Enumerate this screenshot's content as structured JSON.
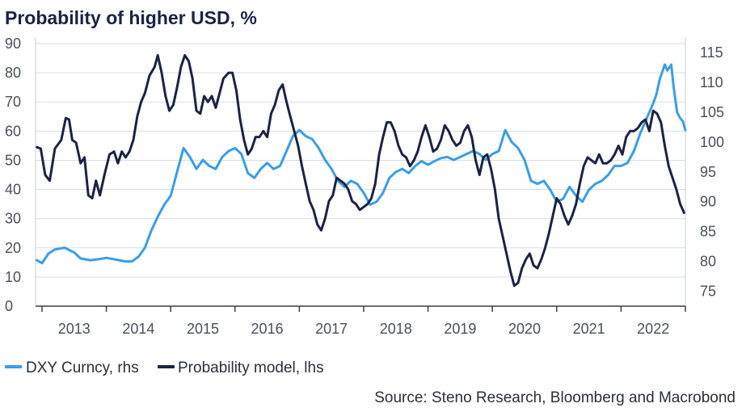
{
  "chart_data": {
    "type": "line",
    "title": "Probability of higher USD, %",
    "source": "Source: Steno Research, Bloomberg and Macrobond",
    "x_ticks": [
      "2013",
      "2014",
      "2015",
      "2016",
      "2017",
      "2018",
      "2019",
      "2020",
      "2021",
      "2022"
    ],
    "x_range": [
      2012.9,
      2023.0
    ],
    "y_left": {
      "ticks": [
        "0",
        "10",
        "20",
        "30",
        "40",
        "50",
        "60",
        "70",
        "80",
        "90"
      ],
      "range": [
        0,
        90
      ]
    },
    "y_right": {
      "ticks": [
        "75",
        "80",
        "85",
        "90",
        "95",
        "100",
        "105",
        "110",
        "115"
      ],
      "range": [
        72.5,
        116.5
      ]
    },
    "grid": true,
    "legend_position": "bottom-left",
    "series": [
      {
        "name": "DXY Curncy, rhs",
        "axis": "right",
        "color": "#3a9de8",
        "points": [
          [
            2012.92,
            80.2
          ],
          [
            2013.0,
            79.7
          ],
          [
            2013.1,
            81.3
          ],
          [
            2013.2,
            82.0
          ],
          [
            2013.35,
            82.3
          ],
          [
            2013.5,
            81.5
          ],
          [
            2013.6,
            80.5
          ],
          [
            2013.75,
            80.2
          ],
          [
            2013.9,
            80.4
          ],
          [
            2014.0,
            80.6
          ],
          [
            2014.15,
            80.3
          ],
          [
            2014.3,
            80.0
          ],
          [
            2014.4,
            80.0
          ],
          [
            2014.5,
            80.8
          ],
          [
            2014.6,
            82.3
          ],
          [
            2014.7,
            85.2
          ],
          [
            2014.8,
            87.5
          ],
          [
            2014.9,
            89.5
          ],
          [
            2015.0,
            91.0
          ],
          [
            2015.1,
            95.0
          ],
          [
            2015.2,
            99.0
          ],
          [
            2015.3,
            97.5
          ],
          [
            2015.4,
            95.5
          ],
          [
            2015.5,
            97.0
          ],
          [
            2015.6,
            96.0
          ],
          [
            2015.7,
            95.5
          ],
          [
            2015.8,
            97.5
          ],
          [
            2015.9,
            98.5
          ],
          [
            2016.0,
            99.0
          ],
          [
            2016.1,
            98.0
          ],
          [
            2016.2,
            94.8
          ],
          [
            2016.3,
            94.0
          ],
          [
            2016.4,
            95.5
          ],
          [
            2016.5,
            96.5
          ],
          [
            2016.6,
            95.5
          ],
          [
            2016.7,
            96.0
          ],
          [
            2016.8,
            98.5
          ],
          [
            2016.9,
            101.0
          ],
          [
            2017.0,
            102.0
          ],
          [
            2017.1,
            101.0
          ],
          [
            2017.2,
            100.5
          ],
          [
            2017.3,
            99.0
          ],
          [
            2017.4,
            97.0
          ],
          [
            2017.5,
            95.5
          ],
          [
            2017.6,
            93.5
          ],
          [
            2017.7,
            92.5
          ],
          [
            2017.8,
            93.5
          ],
          [
            2017.9,
            93.0
          ],
          [
            2018.0,
            91.5
          ],
          [
            2018.1,
            89.5
          ],
          [
            2018.2,
            90.0
          ],
          [
            2018.3,
            91.5
          ],
          [
            2018.4,
            94.0
          ],
          [
            2018.5,
            95.0
          ],
          [
            2018.6,
            95.5
          ],
          [
            2018.7,
            94.8
          ],
          [
            2018.8,
            96.0
          ],
          [
            2018.9,
            96.8
          ],
          [
            2019.0,
            96.2
          ],
          [
            2019.1,
            96.8
          ],
          [
            2019.2,
            97.3
          ],
          [
            2019.3,
            97.5
          ],
          [
            2019.4,
            97.0
          ],
          [
            2019.5,
            97.5
          ],
          [
            2019.6,
            98.0
          ],
          [
            2019.7,
            98.5
          ],
          [
            2019.8,
            98.0
          ],
          [
            2019.9,
            97.0
          ],
          [
            2020.0,
            98.0
          ],
          [
            2020.1,
            98.5
          ],
          [
            2020.2,
            102.0
          ],
          [
            2020.3,
            100.0
          ],
          [
            2020.4,
            99.0
          ],
          [
            2020.5,
            97.0
          ],
          [
            2020.6,
            93.5
          ],
          [
            2020.7,
            93.0
          ],
          [
            2020.8,
            93.5
          ],
          [
            2020.9,
            92.0
          ],
          [
            2021.0,
            90.0
          ],
          [
            2021.1,
            90.5
          ],
          [
            2021.2,
            92.5
          ],
          [
            2021.3,
            91.0
          ],
          [
            2021.4,
            90.0
          ],
          [
            2021.5,
            92.0
          ],
          [
            2021.6,
            93.0
          ],
          [
            2021.7,
            93.5
          ],
          [
            2021.8,
            94.5
          ],
          [
            2021.9,
            96.0
          ],
          [
            2022.0,
            96.0
          ],
          [
            2022.1,
            96.5
          ],
          [
            2022.2,
            98.5
          ],
          [
            2022.3,
            101.5
          ],
          [
            2022.4,
            104.0
          ],
          [
            2022.5,
            106.5
          ],
          [
            2022.55,
            108.0
          ],
          [
            2022.6,
            110.5
          ],
          [
            2022.68,
            113.0
          ],
          [
            2022.72,
            112.0
          ],
          [
            2022.78,
            113.0
          ],
          [
            2022.82,
            109.0
          ],
          [
            2022.87,
            105.0
          ],
          [
            2022.92,
            104.0
          ],
          [
            2022.96,
            103.5
          ],
          [
            2023.0,
            102.0
          ]
        ]
      },
      {
        "name": "Probability model, lhs",
        "axis": "left",
        "color": "#1b2342",
        "points": [
          [
            2012.92,
            54.5
          ],
          [
            2012.98,
            54.0
          ],
          [
            2013.05,
            45.0
          ],
          [
            2013.12,
            43.0
          ],
          [
            2013.2,
            54.0
          ],
          [
            2013.3,
            57.0
          ],
          [
            2013.37,
            64.5
          ],
          [
            2013.42,
            64.0
          ],
          [
            2013.47,
            57.0
          ],
          [
            2013.53,
            56.0
          ],
          [
            2013.6,
            49.0
          ],
          [
            2013.66,
            51.0
          ],
          [
            2013.72,
            38.0
          ],
          [
            2013.78,
            37.0
          ],
          [
            2013.84,
            43.0
          ],
          [
            2013.9,
            38.0
          ],
          [
            2013.97,
            45.0
          ],
          [
            2014.05,
            52.0
          ],
          [
            2014.12,
            53.0
          ],
          [
            2014.18,
            49.0
          ],
          [
            2014.24,
            53.0
          ],
          [
            2014.3,
            51.0
          ],
          [
            2014.36,
            53.0
          ],
          [
            2014.42,
            57.0
          ],
          [
            2014.48,
            65.0
          ],
          [
            2014.54,
            70.0
          ],
          [
            2014.6,
            73.0
          ],
          [
            2014.67,
            79.0
          ],
          [
            2014.75,
            82.0
          ],
          [
            2014.8,
            86.0
          ],
          [
            2014.86,
            80.0
          ],
          [
            2014.92,
            72.0
          ],
          [
            2014.98,
            67.0
          ],
          [
            2015.04,
            69.0
          ],
          [
            2015.1,
            75.0
          ],
          [
            2015.16,
            82.0
          ],
          [
            2015.22,
            86.0
          ],
          [
            2015.28,
            84.0
          ],
          [
            2015.34,
            78.0
          ],
          [
            2015.4,
            67.0
          ],
          [
            2015.46,
            66.0
          ],
          [
            2015.52,
            72.0
          ],
          [
            2015.58,
            70.0
          ],
          [
            2015.64,
            72.0
          ],
          [
            2015.7,
            68.0
          ],
          [
            2015.76,
            73.0
          ],
          [
            2015.82,
            78.0
          ],
          [
            2015.9,
            80.0
          ],
          [
            2015.96,
            80.0
          ],
          [
            2016.02,
            74.0
          ],
          [
            2016.08,
            64.0
          ],
          [
            2016.14,
            57.0
          ],
          [
            2016.2,
            52.0
          ],
          [
            2016.26,
            54.0
          ],
          [
            2016.32,
            58.0
          ],
          [
            2016.38,
            58.0
          ],
          [
            2016.44,
            60.0
          ],
          [
            2016.5,
            58.0
          ],
          [
            2016.56,
            66.0
          ],
          [
            2016.62,
            69.0
          ],
          [
            2016.68,
            74.0
          ],
          [
            2016.74,
            76.0
          ],
          [
            2016.8,
            70.0
          ],
          [
            2016.86,
            65.0
          ],
          [
            2016.92,
            60.0
          ],
          [
            2016.98,
            55.0
          ],
          [
            2017.04,
            48.0
          ],
          [
            2017.1,
            42.0
          ],
          [
            2017.16,
            36.0
          ],
          [
            2017.22,
            33.0
          ],
          [
            2017.28,
            28.0
          ],
          [
            2017.34,
            26.0
          ],
          [
            2017.4,
            30.0
          ],
          [
            2017.46,
            36.0
          ],
          [
            2017.52,
            38.0
          ],
          [
            2017.58,
            44.0
          ],
          [
            2017.64,
            43.0
          ],
          [
            2017.7,
            42.0
          ],
          [
            2017.76,
            40.0
          ],
          [
            2017.82,
            36.0
          ],
          [
            2017.88,
            35.0
          ],
          [
            2017.94,
            33.0
          ],
          [
            2018.0,
            34.0
          ],
          [
            2018.06,
            35.0
          ],
          [
            2018.12,
            37.0
          ],
          [
            2018.18,
            42.0
          ],
          [
            2018.24,
            52.0
          ],
          [
            2018.3,
            58.0
          ],
          [
            2018.36,
            63.0
          ],
          [
            2018.42,
            63.0
          ],
          [
            2018.48,
            60.0
          ],
          [
            2018.54,
            55.0
          ],
          [
            2018.6,
            52.0
          ],
          [
            2018.66,
            51.0
          ],
          [
            2018.72,
            48.0
          ],
          [
            2018.78,
            50.0
          ],
          [
            2018.84,
            53.0
          ],
          [
            2018.9,
            58.0
          ],
          [
            2018.96,
            62.0
          ],
          [
            2019.02,
            58.0
          ],
          [
            2019.08,
            53.0
          ],
          [
            2019.14,
            54.0
          ],
          [
            2019.2,
            57.0
          ],
          [
            2019.26,
            62.0
          ],
          [
            2019.32,
            60.0
          ],
          [
            2019.38,
            57.0
          ],
          [
            2019.44,
            55.0
          ],
          [
            2019.5,
            56.0
          ],
          [
            2019.56,
            60.0
          ],
          [
            2019.62,
            62.0
          ],
          [
            2019.68,
            58.0
          ],
          [
            2019.74,
            50.0
          ],
          [
            2019.8,
            45.0
          ],
          [
            2019.86,
            51.0
          ],
          [
            2019.92,
            52.0
          ],
          [
            2019.98,
            47.0
          ],
          [
            2020.04,
            40.0
          ],
          [
            2020.1,
            30.0
          ],
          [
            2020.16,
            24.0
          ],
          [
            2020.22,
            18.0
          ],
          [
            2020.28,
            12.0
          ],
          [
            2020.34,
            7.0
          ],
          [
            2020.4,
            8.0
          ],
          [
            2020.46,
            13.0
          ],
          [
            2020.52,
            16.0
          ],
          [
            2020.58,
            18.0
          ],
          [
            2020.64,
            14.0
          ],
          [
            2020.7,
            13.0
          ],
          [
            2020.76,
            16.0
          ],
          [
            2020.82,
            20.0
          ],
          [
            2020.88,
            25.0
          ],
          [
            2020.94,
            31.0
          ],
          [
            2021.0,
            37.0
          ],
          [
            2021.06,
            35.0
          ],
          [
            2021.12,
            31.0
          ],
          [
            2021.18,
            28.0
          ],
          [
            2021.24,
            31.0
          ],
          [
            2021.3,
            35.0
          ],
          [
            2021.36,
            42.0
          ],
          [
            2021.42,
            48.0
          ],
          [
            2021.48,
            51.0
          ],
          [
            2021.54,
            50.0
          ],
          [
            2021.6,
            49.0
          ],
          [
            2021.66,
            52.0
          ],
          [
            2021.72,
            49.0
          ],
          [
            2021.78,
            49.0
          ],
          [
            2021.84,
            50.0
          ],
          [
            2021.9,
            52.0
          ],
          [
            2021.96,
            55.0
          ],
          [
            2022.02,
            52.0
          ],
          [
            2022.08,
            58.0
          ],
          [
            2022.14,
            60.0
          ],
          [
            2022.2,
            60.0
          ],
          [
            2022.26,
            61.0
          ],
          [
            2022.32,
            63.0
          ],
          [
            2022.38,
            64.0
          ],
          [
            2022.44,
            60.0
          ],
          [
            2022.5,
            67.0
          ],
          [
            2022.56,
            66.0
          ],
          [
            2022.62,
            63.0
          ],
          [
            2022.68,
            55.0
          ],
          [
            2022.74,
            48.0
          ],
          [
            2022.8,
            44.0
          ],
          [
            2022.86,
            40.0
          ],
          [
            2022.92,
            35.0
          ],
          [
            2022.98,
            32.0
          ]
        ]
      }
    ]
  }
}
